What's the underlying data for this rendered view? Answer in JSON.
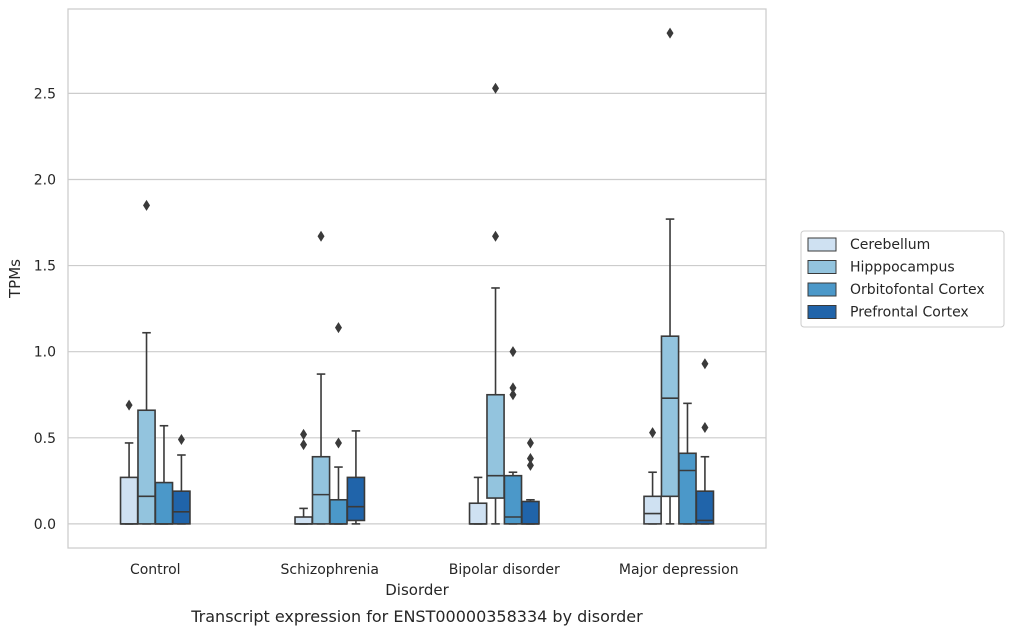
{
  "chart_data": {
    "type": "box",
    "xlabel": "Disorder",
    "ylabel": "TPMs",
    "caption": "Transcript expression for ENST00000358334 by disorder",
    "ylim": [
      -0.14,
      2.99
    ],
    "yticks": [
      "0.0",
      "0.5",
      "1.0",
      "1.5",
      "2.0",
      "2.5"
    ],
    "ytick_values": [
      0.0,
      0.5,
      1.0,
      1.5,
      2.0,
      2.5
    ],
    "grid": true,
    "legend_position": "right",
    "categories": [
      "Control",
      "Schizophrenia",
      "Bipolar disorder",
      "Major depression"
    ],
    "series": [
      {
        "name": "Cerebellum",
        "color": "#cfe1f2",
        "boxes": [
          {
            "whislo": 0.0,
            "q1": 0.0,
            "med": 0.0,
            "q3": 0.27,
            "whishi": 0.47,
            "fliers": [
              0.69
            ]
          },
          {
            "whislo": 0.0,
            "q1": 0.0,
            "med": 0.0,
            "q3": 0.04,
            "whishi": 0.09,
            "fliers": [
              0.46,
              0.52
            ]
          },
          {
            "whislo": 0.0,
            "q1": 0.0,
            "med": 0.0,
            "q3": 0.12,
            "whishi": 0.27,
            "fliers": []
          },
          {
            "whislo": 0.0,
            "q1": 0.0,
            "med": 0.06,
            "q3": 0.16,
            "whishi": 0.3,
            "fliers": [
              0.53
            ]
          }
        ]
      },
      {
        "name": "Hipppocampus",
        "color": "#93c4de",
        "boxes": [
          {
            "whislo": 0.0,
            "q1": 0.0,
            "med": 0.16,
            "q3": 0.66,
            "whishi": 1.11,
            "fliers": [
              1.85
            ]
          },
          {
            "whislo": 0.0,
            "q1": 0.0,
            "med": 0.17,
            "q3": 0.39,
            "whishi": 0.87,
            "fliers": [
              1.67
            ]
          },
          {
            "whislo": 0.0,
            "q1": 0.15,
            "med": 0.28,
            "q3": 0.75,
            "whishi": 1.37,
            "fliers": [
              1.67,
              2.53
            ]
          },
          {
            "whislo": 0.0,
            "q1": 0.16,
            "med": 0.73,
            "q3": 1.09,
            "whishi": 1.77,
            "fliers": [
              2.85
            ]
          }
        ]
      },
      {
        "name": "Orbitofontal Cortex",
        "color": "#4b98c9",
        "boxes": [
          {
            "whislo": 0.0,
            "q1": 0.0,
            "med": 0.0,
            "q3": 0.24,
            "whishi": 0.57,
            "fliers": []
          },
          {
            "whislo": 0.0,
            "q1": 0.0,
            "med": 0.0,
            "q3": 0.14,
            "whishi": 0.33,
            "fliers": [
              0.47,
              1.14
            ]
          },
          {
            "whislo": 0.0,
            "q1": 0.0,
            "med": 0.04,
            "q3": 0.28,
            "whishi": 0.3,
            "fliers": [
              0.75,
              0.79,
              1.0
            ]
          },
          {
            "whislo": 0.0,
            "q1": 0.0,
            "med": 0.31,
            "q3": 0.41,
            "whishi": 0.7,
            "fliers": []
          }
        ]
      },
      {
        "name": "Prefrontal Cortex",
        "color": "#2064aa",
        "boxes": [
          {
            "whislo": 0.0,
            "q1": 0.0,
            "med": 0.07,
            "q3": 0.19,
            "whishi": 0.4,
            "fliers": [
              0.49
            ]
          },
          {
            "whislo": 0.0,
            "q1": 0.02,
            "med": 0.1,
            "q3": 0.27,
            "whishi": 0.54,
            "fliers": []
          },
          {
            "whislo": 0.0,
            "q1": 0.0,
            "med": 0.0,
            "q3": 0.13,
            "whishi": 0.14,
            "fliers": [
              0.34,
              0.38,
              0.47
            ]
          },
          {
            "whislo": 0.0,
            "q1": 0.0,
            "med": 0.02,
            "q3": 0.19,
            "whishi": 0.39,
            "fliers": [
              0.56,
              0.93
            ]
          }
        ]
      }
    ]
  }
}
